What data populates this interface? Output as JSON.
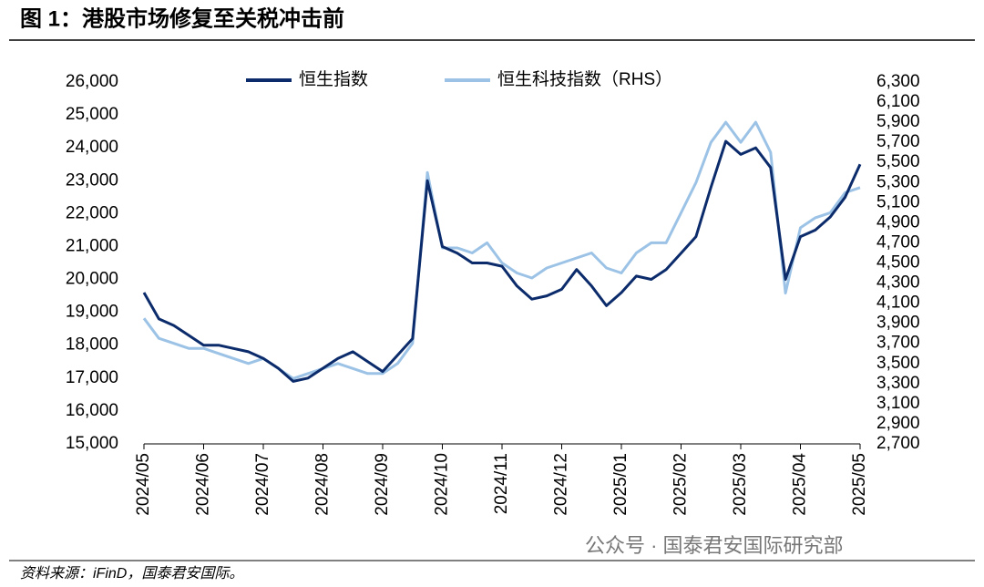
{
  "chart_data": {
    "type": "line",
    "title": "图 1：港股市场修复至关税冲击前",
    "source": "资料来源：iFinD，国泰君安国际。",
    "watermark": "公众号 · 国泰君安国际研究部",
    "categories": [
      "2024/05",
      null,
      null,
      null,
      "2024/06",
      null,
      null,
      null,
      "2024/07",
      null,
      null,
      null,
      "2024/08",
      null,
      null,
      null,
      "2024/09",
      null,
      null,
      null,
      "2024/10",
      null,
      null,
      null,
      "2024/11",
      null,
      null,
      null,
      "2024/12",
      null,
      null,
      null,
      "2025/01",
      null,
      null,
      null,
      "2025/02",
      null,
      null,
      null,
      "2025/03",
      null,
      null,
      null,
      "2025/04",
      null,
      null,
      null,
      "2025/05"
    ],
    "series": [
      {
        "name": "恒生指数",
        "color": "#0b2b6b",
        "values": [
          19600,
          18800,
          18600,
          18300,
          18000,
          18000,
          17900,
          17800,
          17600,
          17300,
          16900,
          17000,
          17300,
          17600,
          17800,
          17500,
          17200,
          17700,
          18200,
          23000,
          21000,
          20800,
          20500,
          20500,
          20400,
          19800,
          19400,
          19500,
          19700,
          20300,
          19800,
          19200,
          19600,
          20100,
          20000,
          20300,
          20800,
          21300,
          22800,
          24200,
          23800,
          24000,
          23400,
          20000,
          21300,
          21500,
          21900,
          22500,
          23500
        ]
      },
      {
        "name": "恒生科技指数（RHS）",
        "color": "#9cc3e6",
        "axis": "y2",
        "values": [
          3950,
          3750,
          3700,
          3650,
          3650,
          3600,
          3550,
          3500,
          3550,
          3450,
          3350,
          3400,
          3450,
          3500,
          3450,
          3400,
          3400,
          3500,
          3700,
          5400,
          4650,
          4650,
          4600,
          4700,
          4500,
          4400,
          4350,
          4450,
          4500,
          4550,
          4600,
          4450,
          4400,
          4600,
          4700,
          4700,
          5000,
          5300,
          5700,
          5900,
          5700,
          5900,
          5600,
          4200,
          4850,
          4950,
          5000,
          5200,
          5250
        ]
      }
    ],
    "ylim": [
      15000,
      26000
    ],
    "yticks": [
      {
        "value": 15000,
        "label": "15,000"
      },
      {
        "value": 16000,
        "label": "16,000"
      },
      {
        "value": 17000,
        "label": "17,000"
      },
      {
        "value": 18000,
        "label": "18,000"
      },
      {
        "value": 19000,
        "label": "19,000"
      },
      {
        "value": 20000,
        "label": "20,000"
      },
      {
        "value": 21000,
        "label": "21,000"
      },
      {
        "value": 22000,
        "label": "22,000"
      },
      {
        "value": 23000,
        "label": "23,000"
      },
      {
        "value": 24000,
        "label": "24,000"
      },
      {
        "value": 25000,
        "label": "25,000"
      },
      {
        "value": 26000,
        "label": "26,000"
      }
    ],
    "y2lim": [
      2700,
      6300
    ],
    "y2ticks": [
      {
        "value": 2700,
        "label": "2,700"
      },
      {
        "value": 2900,
        "label": "2,900"
      },
      {
        "value": 3100,
        "label": "3,100"
      },
      {
        "value": 3300,
        "label": "3,300"
      },
      {
        "value": 3500,
        "label": "3,500"
      },
      {
        "value": 3700,
        "label": "3,700"
      },
      {
        "value": 3900,
        "label": "3,900"
      },
      {
        "value": 4100,
        "label": "4,100"
      },
      {
        "value": 4300,
        "label": "4,300"
      },
      {
        "value": 4500,
        "label": "4,500"
      },
      {
        "value": 4700,
        "label": "4,700"
      },
      {
        "value": 4900,
        "label": "4,900"
      },
      {
        "value": 5100,
        "label": "5,100"
      },
      {
        "value": 5300,
        "label": "5,300"
      },
      {
        "value": 5500,
        "label": "5,500"
      },
      {
        "value": 5700,
        "label": "5,700"
      },
      {
        "value": 5900,
        "label": "5,900"
      },
      {
        "value": 6100,
        "label": "6,100"
      },
      {
        "value": 6300,
        "label": "6,300"
      }
    ],
    "grid": false,
    "legend": "top"
  }
}
